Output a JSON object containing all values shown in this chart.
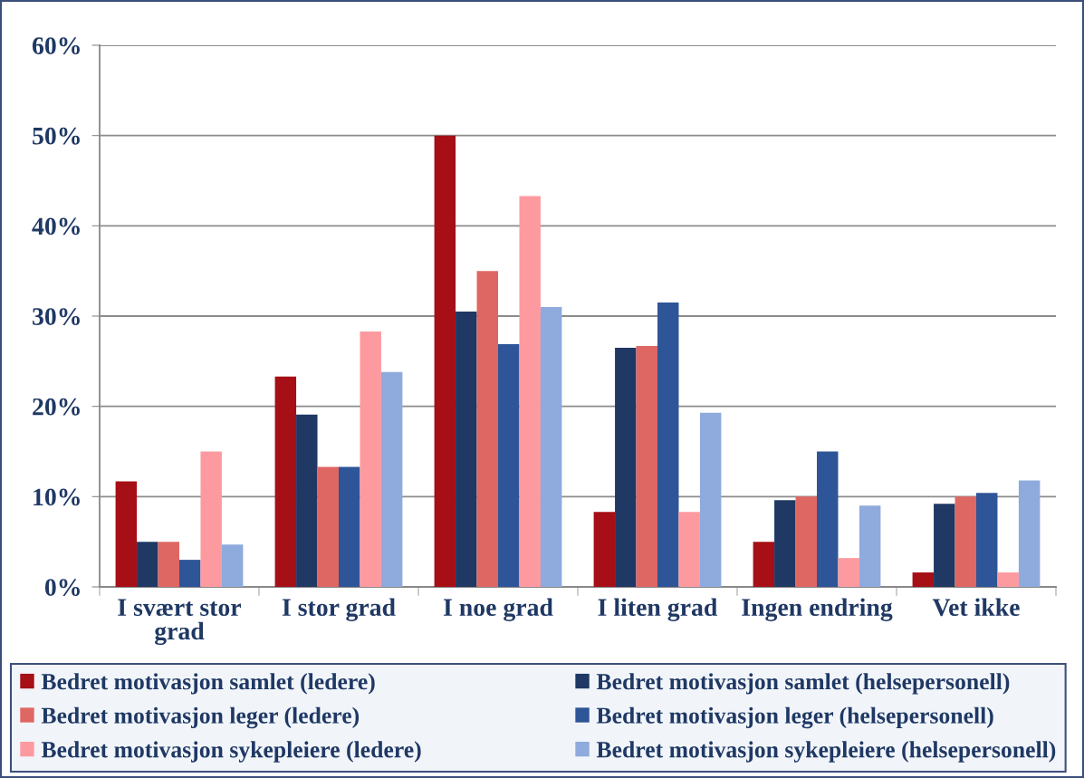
{
  "chart_data": {
    "type": "bar",
    "categories": [
      "I svært stor grad",
      "I stor grad",
      "I noe grad",
      "I liten grad",
      "Ingen endring",
      "Vet ikke"
    ],
    "series": [
      {
        "name": "Bedret motivasjon samlet (ledere)",
        "color": "#a50f15",
        "values": [
          11.7,
          23.3,
          50.0,
          8.3,
          5.0,
          1.6
        ]
      },
      {
        "name": "Bedret motivasjon samlet (helsepersonell)",
        "color": "#1f3864",
        "values": [
          5.0,
          19.1,
          30.5,
          26.5,
          9.6,
          9.2
        ]
      },
      {
        "name": "Bedret motivasjon leger (ledere)",
        "color": "#df6763",
        "values": [
          5.0,
          13.3,
          35.0,
          26.7,
          10.0,
          10.0
        ]
      },
      {
        "name": "Bedret motivasjon leger (helsepersonell)",
        "color": "#2e5597",
        "values": [
          3.0,
          13.3,
          26.9,
          31.5,
          15.0,
          10.4
        ]
      },
      {
        "name": "Bedret motivasjon sykepleiere (ledere)",
        "color": "#fd9aa0",
        "values": [
          15.0,
          28.3,
          43.3,
          8.3,
          3.2,
          1.6
        ]
      },
      {
        "name": "Bedret motivasjon sykepleiere (helsepersonell)",
        "color": "#8faadc",
        "values": [
          4.7,
          23.8,
          31.0,
          19.3,
          9.0,
          11.8
        ]
      }
    ],
    "ylim": [
      0,
      60
    ],
    "yticks": [
      {
        "value": 0,
        "label": "0%"
      },
      {
        "value": 10,
        "label": "10%"
      },
      {
        "value": 20,
        "label": "20%"
      },
      {
        "value": 30,
        "label": "30%"
      },
      {
        "value": 40,
        "label": "40%"
      },
      {
        "value": 50,
        "label": "50%"
      },
      {
        "value": 60,
        "label": "60%"
      }
    ],
    "grid": "y",
    "legend": "bottom"
  }
}
